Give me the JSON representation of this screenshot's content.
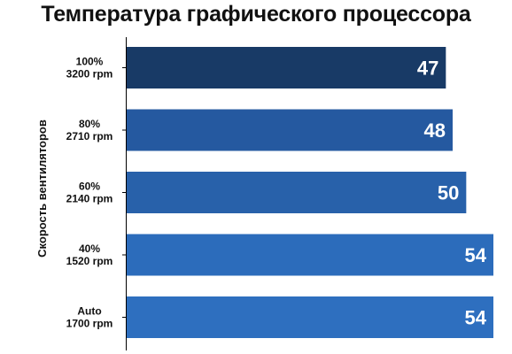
{
  "chart_data": {
    "type": "bar",
    "orientation": "horizontal",
    "title": "Температура графического процессора",
    "ylabel": "Скорость вентиляторов",
    "xlabel": "",
    "categories": [
      [
        "100%",
        "3200 rpm"
      ],
      [
        "80%",
        "2710 rpm"
      ],
      [
        "60%",
        "2140 rpm"
      ],
      [
        "40%",
        "1520 rpm"
      ],
      [
        "Auto",
        "1700 rpm"
      ]
    ],
    "values": [
      47,
      48,
      50,
      54,
      54
    ],
    "xlim": [
      0,
      54
    ],
    "data_labels": true,
    "grid": false,
    "legend": "none",
    "colors": [
      "#183a66",
      "#2559a0",
      "#2861aa",
      "#2c6cbb",
      "#2e6fbf"
    ],
    "label_color": "#ffffff"
  }
}
